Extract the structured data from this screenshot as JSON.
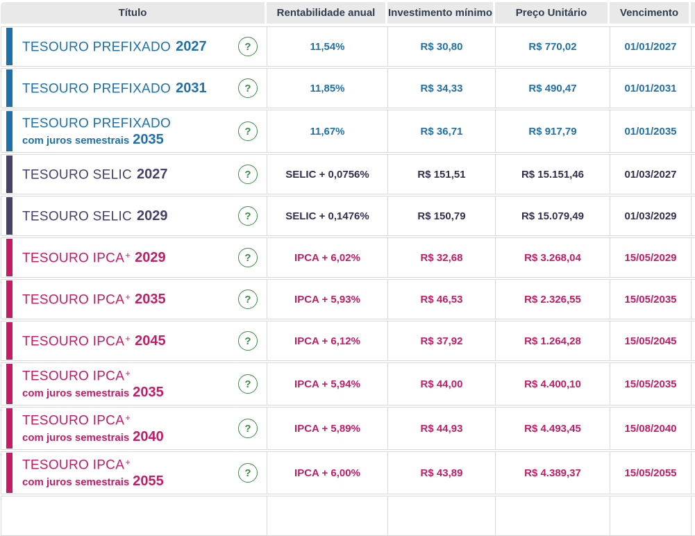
{
  "table": {
    "columns": [
      "Título",
      "Rentabilidade anual",
      "Investimento mínimo",
      "Preço Unitário",
      "Vencimento"
    ],
    "help_icon_label": "?",
    "rows": [
      {
        "category": "prefixado",
        "name": "TESOURO PREFIXADO",
        "superscript": "",
        "subtitle": "",
        "year": "2027",
        "annual_rate": "11,54%",
        "min_investment": "R$ 30,80",
        "unit_price": "R$ 770,02",
        "maturity": "01/01/2027"
      },
      {
        "category": "prefixado",
        "name": "TESOURO PREFIXADO",
        "superscript": "",
        "subtitle": "",
        "year": "2031",
        "annual_rate": "11,85%",
        "min_investment": "R$ 34,33",
        "unit_price": "R$ 490,47",
        "maturity": "01/01/2031"
      },
      {
        "category": "prefixado",
        "name": "TESOURO PREFIXADO",
        "superscript": "",
        "subtitle": "com juros semestrais",
        "year": "2035",
        "annual_rate": "11,67%",
        "min_investment": "R$ 36,71",
        "unit_price": "R$ 917,79",
        "maturity": "01/01/2035"
      },
      {
        "category": "selic",
        "name": "TESOURO SELIC",
        "superscript": "",
        "subtitle": "",
        "year": "2027",
        "annual_rate": "SELIC + 0,0756%",
        "min_investment": "R$ 151,51",
        "unit_price": "R$ 15.151,46",
        "maturity": "01/03/2027"
      },
      {
        "category": "selic",
        "name": "TESOURO SELIC",
        "superscript": "",
        "subtitle": "",
        "year": "2029",
        "annual_rate": "SELIC + 0,1476%",
        "min_investment": "R$ 150,79",
        "unit_price": "R$ 15.079,49",
        "maturity": "01/03/2029"
      },
      {
        "category": "ipca",
        "name": "TESOURO IPCA",
        "superscript": "+",
        "subtitle": "",
        "year": "2029",
        "annual_rate": "IPCA + 6,02%",
        "min_investment": "R$ 32,68",
        "unit_price": "R$ 3.268,04",
        "maturity": "15/05/2029"
      },
      {
        "category": "ipca",
        "name": "TESOURO IPCA",
        "superscript": "+",
        "subtitle": "",
        "year": "2035",
        "annual_rate": "IPCA + 5,93%",
        "min_investment": "R$ 46,53",
        "unit_price": "R$ 2.326,55",
        "maturity": "15/05/2035"
      },
      {
        "category": "ipca",
        "name": "TESOURO IPCA",
        "superscript": "+",
        "subtitle": "",
        "year": "2045",
        "annual_rate": "IPCA + 6,12%",
        "min_investment": "R$ 37,92",
        "unit_price": "R$ 1.264,28",
        "maturity": "15/05/2045"
      },
      {
        "category": "ipca",
        "name": "TESOURO IPCA",
        "superscript": "+",
        "subtitle": "com juros semestrais",
        "year": "2035",
        "annual_rate": "IPCA + 5,94%",
        "min_investment": "R$ 44,00",
        "unit_price": "R$ 4.400,10",
        "maturity": "15/05/2035"
      },
      {
        "category": "ipca",
        "name": "TESOURO IPCA",
        "superscript": "+",
        "subtitle": "com juros semestrais",
        "year": "2040",
        "annual_rate": "IPCA + 5,89%",
        "min_investment": "R$ 44,93",
        "unit_price": "R$ 4.493,45",
        "maturity": "15/08/2040"
      },
      {
        "category": "ipca",
        "name": "TESOURO IPCA",
        "superscript": "+",
        "subtitle": "com juros semestrais",
        "year": "2055",
        "annual_rate": "IPCA + 6,00%",
        "min_investment": "R$ 43,89",
        "unit_price": "R$ 4.389,37",
        "maturity": "15/05/2055"
      }
    ]
  },
  "colors": {
    "prefixado_accent": "#1f70a8",
    "selic_accent": "#454168",
    "selic_value": "#312f4d",
    "ipca_accent": "#c31b64",
    "help_green": "#3a8a46",
    "header_bg": "#e9e9e9",
    "header_text": "#2e3d4f",
    "border": "#d8d8d8"
  }
}
